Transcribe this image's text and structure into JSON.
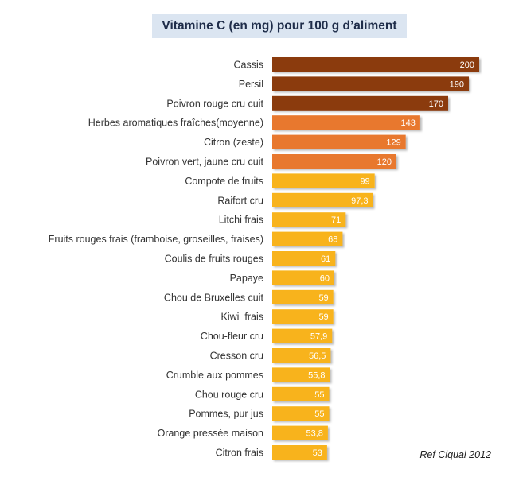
{
  "chart_data": {
    "type": "bar",
    "orientation": "horizontal",
    "title": "Vitamine C (en mg) pour 100 g d’aliment",
    "categories": [
      "Cassis",
      "Persil",
      "Poivron rouge cru cuit",
      "Herbes aromatiques fraîches(moyenne)",
      "Citron (zeste)",
      "Poivron vert, jaune cru cuit",
      "Compote de fruits",
      "Raifort cru",
      "Litchi frais",
      "Fruits rouges frais (framboise, groseilles, fraises)",
      "Coulis de fruits rouges",
      "Papaye",
      "Chou de Bruxelles cuit",
      "Kiwi  frais",
      "Chou-fleur cru",
      "Cresson cru",
      "Crumble aux pommes",
      "Chou rouge cru",
      "Pommes, pur jus",
      "Orange pressée maison",
      "Citron frais"
    ],
    "values": [
      200,
      190,
      170,
      143,
      129,
      120,
      99,
      97.3,
      71,
      68,
      61,
      60,
      59,
      59,
      57.9,
      56.5,
      55.8,
      55,
      55,
      53.8,
      53
    ],
    "value_labels": [
      "200",
      "190",
      "170",
      "143",
      "129",
      "120",
      "99",
      "97,3",
      "71",
      "68",
      "61",
      "60",
      "59",
      "59",
      "57,9",
      "56,5",
      "55,8",
      "55",
      "55",
      "53,8",
      "53"
    ],
    "color_groups": [
      "high",
      "high",
      "high",
      "mid",
      "mid",
      "mid",
      "low",
      "low",
      "low",
      "low",
      "low",
      "low",
      "low",
      "low",
      "low",
      "low",
      "low",
      "low",
      "low",
      "low",
      "low"
    ],
    "colors": {
      "high": "#8b3a10",
      "mid": "#e8782e",
      "low": "#f8b31c"
    },
    "xlim": [
      0,
      200
    ],
    "grid": false,
    "legend": "none"
  },
  "source_note": "Ref Ciqual 2012"
}
